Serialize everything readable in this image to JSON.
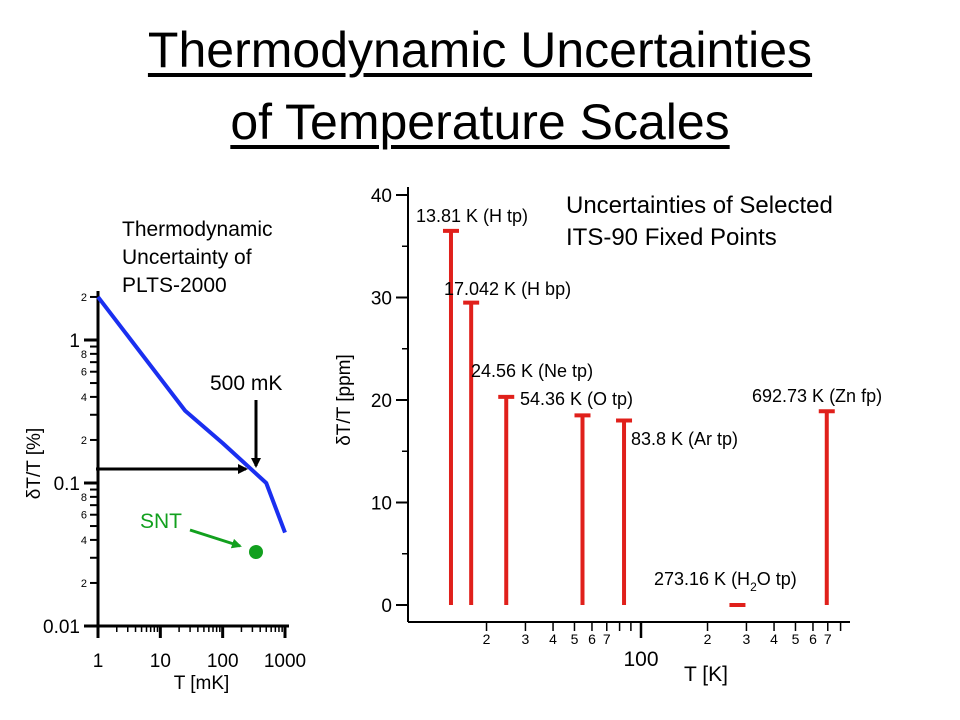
{
  "title": {
    "line1": "Thermodynamic Uncertainties",
    "line2": "of Temperature Scales"
  },
  "chart_data": [
    {
      "type": "line",
      "annotation_title": [
        "Thermodynamic",
        "Uncertainty of",
        "PLTS-2000"
      ],
      "xlabel": "T [mK]",
      "ylabel": "δT/T [%]",
      "xscale": "log",
      "yscale": "log",
      "xlim": [
        0.9,
        1100
      ],
      "ylim": [
        0.01,
        2.5
      ],
      "x_ticklabels": [
        "1",
        "10",
        "100",
        "1000"
      ],
      "y_ticklabels": [
        "0.01",
        "0.1",
        "1"
      ],
      "y_minor_labels": [
        "2",
        "4",
        "6",
        "8",
        "2",
        "4",
        "6",
        "8",
        "2"
      ],
      "series": [
        {
          "x": [
            1,
            25,
            100,
            500,
            1000
          ],
          "y": [
            2.0,
            0.32,
            0.19,
            0.1,
            0.045
          ],
          "color": "#1a2ff0"
        }
      ],
      "annotations": [
        {
          "text": "500 mK",
          "arrow_to": [
            500,
            0.12
          ]
        },
        {
          "text": "SNT",
          "color": "#12a01e",
          "point": [
            350,
            0.03
          ]
        }
      ]
    },
    {
      "type": "bar",
      "annotation_title": [
        "Uncertainties of Selected",
        "ITS-90 Fixed Points"
      ],
      "xlabel": "T [K]",
      "ylabel": "δT/T [ppm]",
      "xscale": "log",
      "xlim": [
        10,
        1000
      ],
      "ylim": [
        0,
        40
      ],
      "y_ticks": [
        "0",
        "10",
        "20",
        "30",
        "40"
      ],
      "x_ticklabels": [
        "2",
        "3",
        "4",
        "5",
        "6",
        "7",
        "100",
        "2",
        "3",
        "4",
        "5",
        "6",
        "7"
      ],
      "color": "#e0201b",
      "points": [
        {
          "label": "13.81 K (H tp)",
          "x": 13.81,
          "value": 36.5
        },
        {
          "label": "17.042 K (H bp)",
          "x": 17.042,
          "value": 29.5
        },
        {
          "label": "24.56 K (Ne tp)",
          "x": 24.56,
          "value": 20.3
        },
        {
          "label": "54.36 K (O tp)",
          "x": 54.36,
          "value": 18.5
        },
        {
          "label": "83.8 K (Ar tp)",
          "x": 83.8,
          "value": 18.0
        },
        {
          "label_prefix": "273.16 K (H",
          "label_sub": "2",
          "label_suffix": "O tp)",
          "x": 273.16,
          "value": 0.0
        },
        {
          "label": "692.73 K (Zn fp)",
          "x": 692.73,
          "value": 18.9
        }
      ]
    }
  ]
}
